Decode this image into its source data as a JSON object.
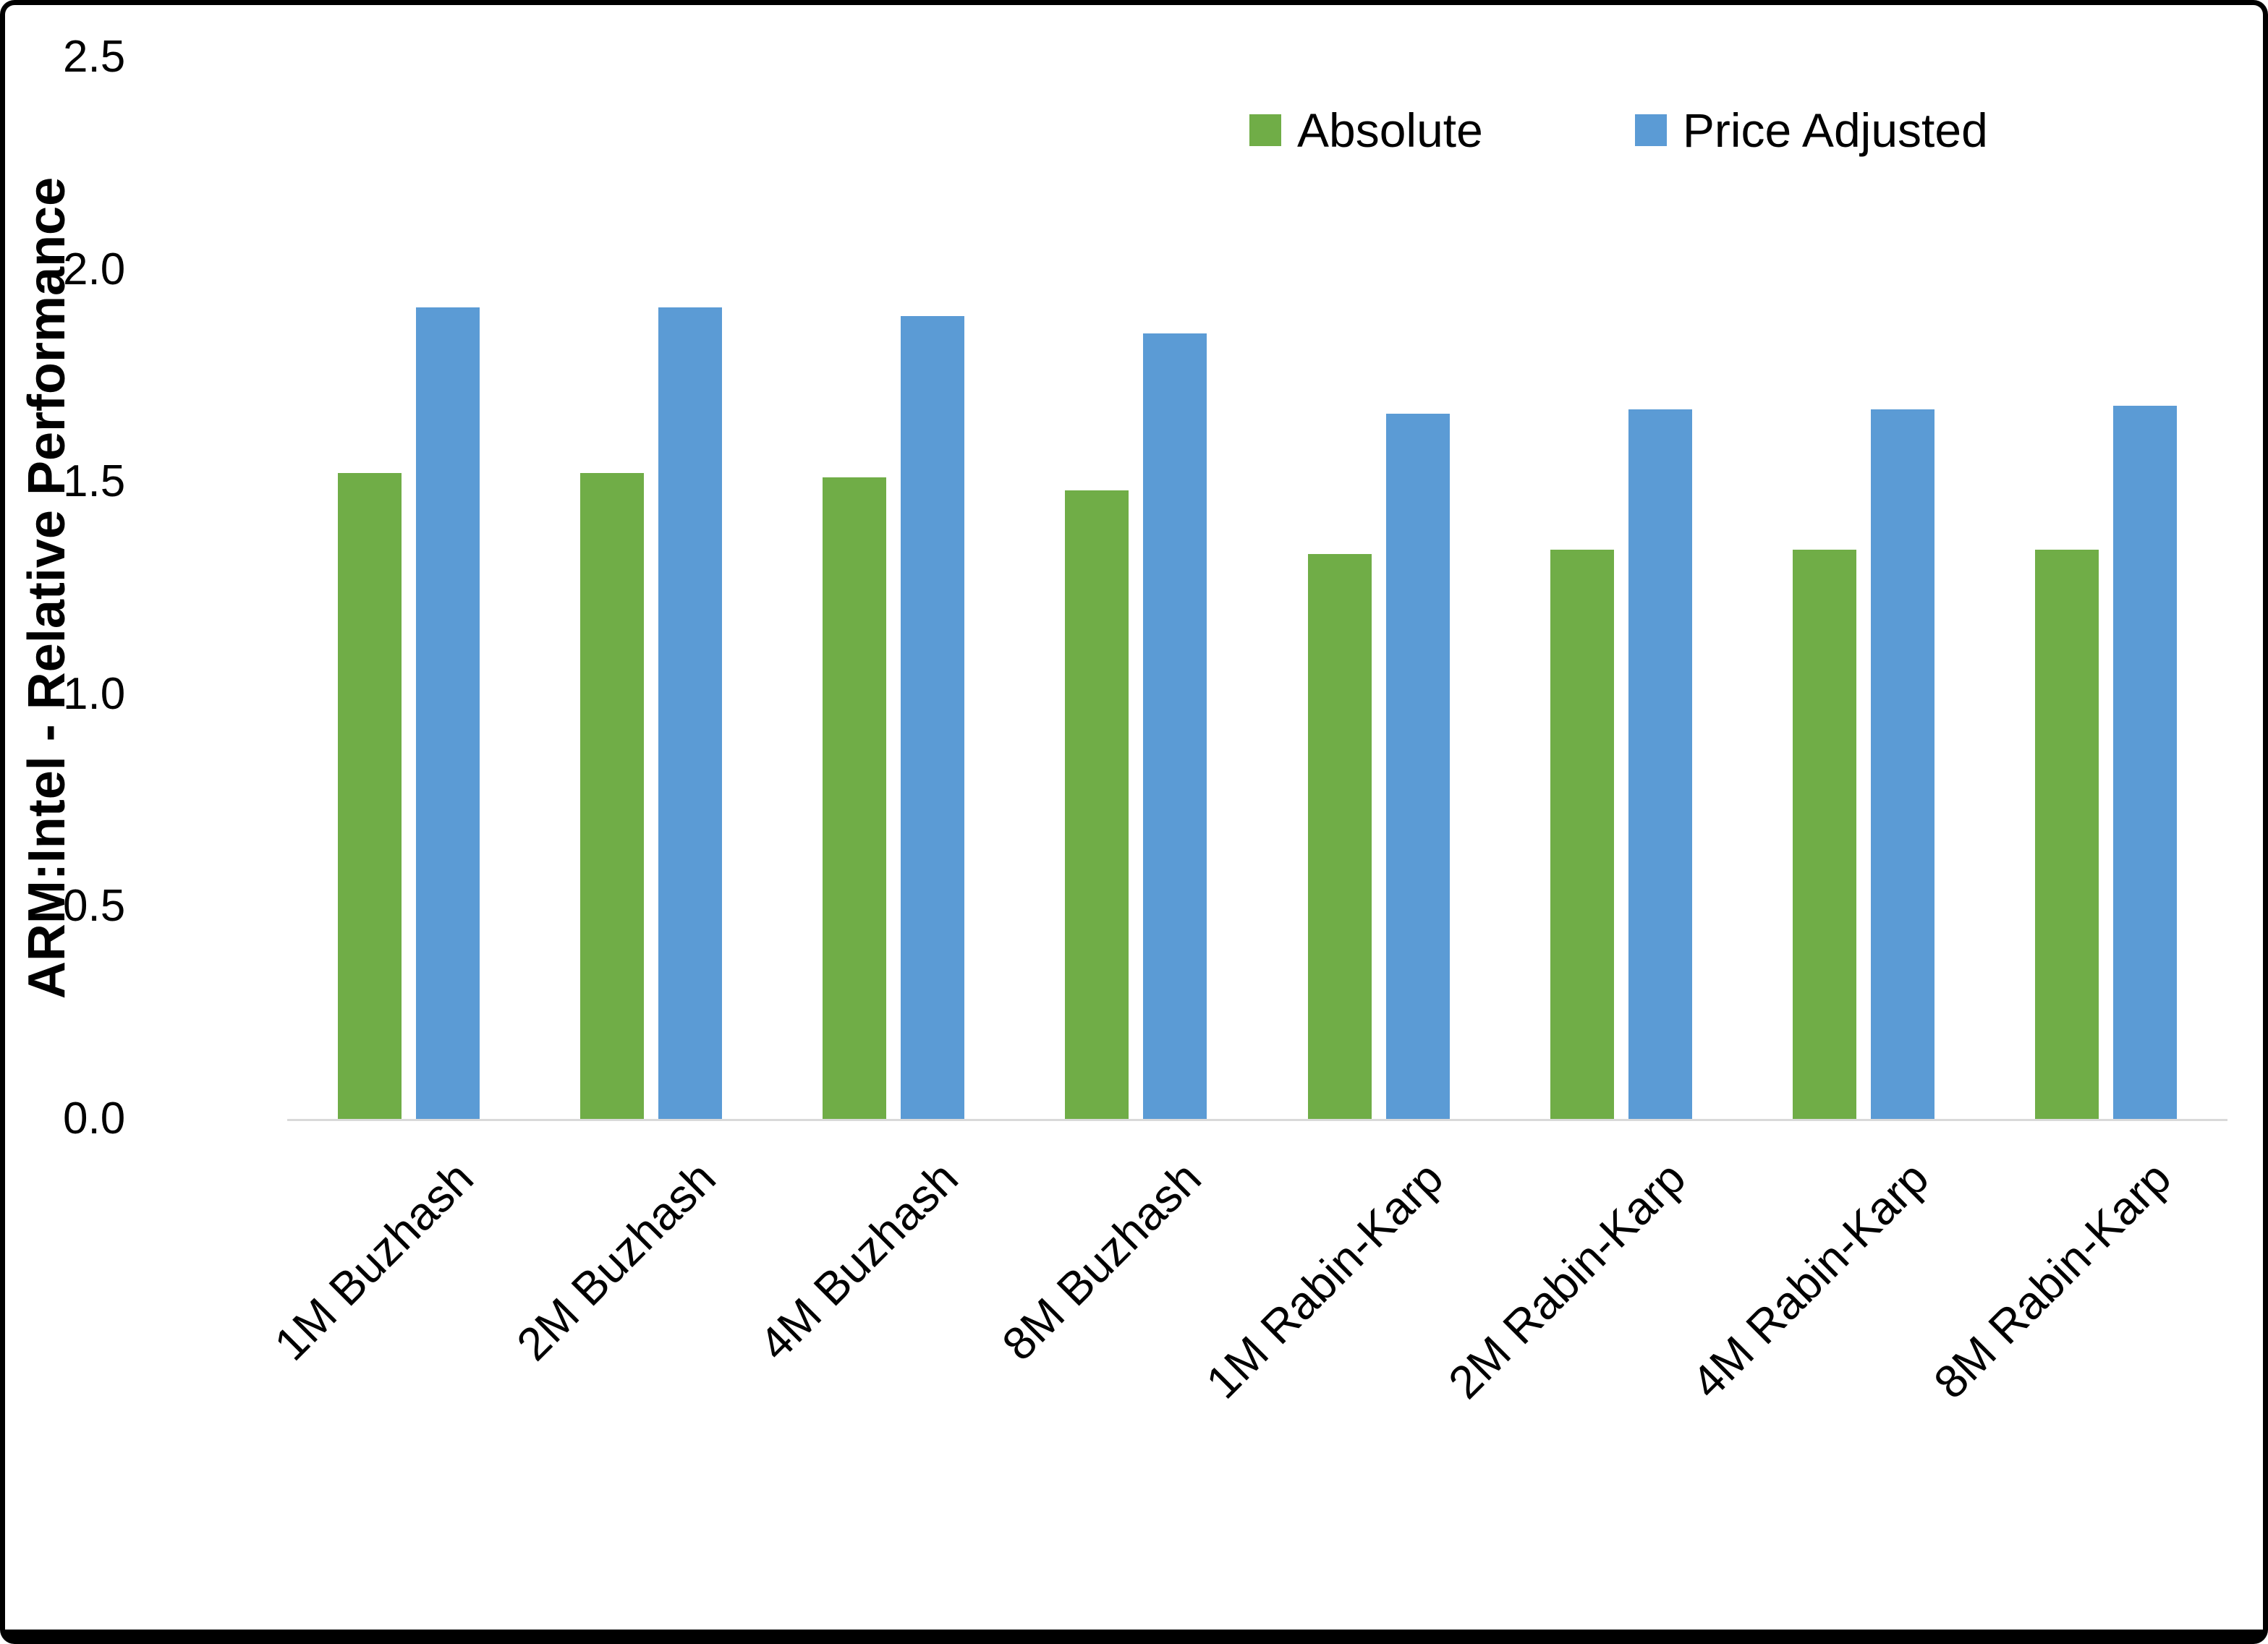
{
  "chart_data": {
    "type": "bar",
    "title": "",
    "xlabel": "",
    "ylabel": "ARM:Intel - Relative Performance",
    "ylim": [
      0,
      2.5
    ],
    "ytick_labels": [
      "0.0",
      "0.5",
      "1.0",
      "1.5",
      "2.0",
      "2.5"
    ],
    "grid": false,
    "legend_position": "top-right",
    "categories": [
      "1M Buzhash",
      "2M Buzhash",
      "4M Buzhash",
      "8M Buzhash",
      "1M Rabin-Karp",
      "2M Rabin-Karp",
      "4M Rabin-Karp",
      "8M Rabin-Karp"
    ],
    "series": [
      {
        "name": "Absolute",
        "color": "#70AD47",
        "values": [
          1.52,
          1.52,
          1.51,
          1.48,
          1.33,
          1.34,
          1.34,
          1.34
        ]
      },
      {
        "name": "Price Adjusted",
        "color": "#5B9BD5",
        "values": [
          1.91,
          1.91,
          1.89,
          1.85,
          1.66,
          1.67,
          1.67,
          1.68
        ]
      }
    ]
  }
}
